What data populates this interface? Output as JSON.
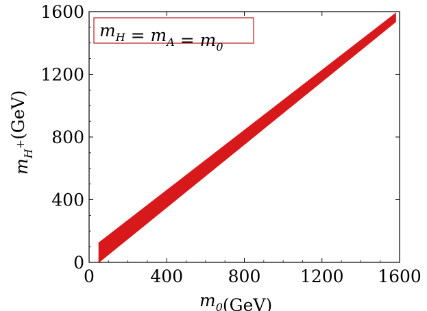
{
  "chart_data": {
    "type": "area",
    "title": "",
    "xlabel": {
      "base": "m",
      "sub": "0",
      "unit": "(GeV)"
    },
    "ylabel": {
      "base": "m",
      "sub": "H",
      "sup": "+",
      "unit": "(GeV)"
    },
    "xlim": [
      0,
      1600
    ],
    "ylim": [
      0,
      1600
    ],
    "xticks": [
      0,
      400,
      800,
      1200,
      1600
    ],
    "yticks": [
      0,
      400,
      800,
      1200,
      1600
    ],
    "grid": false,
    "annotation": {
      "parts": [
        {
          "base": "m",
          "sub": "H"
        },
        {
          "text": " = "
        },
        {
          "base": "m",
          "sub": "A"
        },
        {
          "text": " = "
        },
        {
          "base": "m",
          "sub": "0"
        }
      ],
      "placement": "top-left"
    },
    "series": [
      {
        "fill": "#d7191c",
        "x": [
          50,
          1580
        ],
        "y_lower": [
          0,
          1535
        ],
        "y_upper": [
          125,
          1590
        ]
      }
    ]
  },
  "colors": {
    "band": "#d7191c",
    "annotation_border": "#c0282d",
    "axis": "#000000"
  }
}
